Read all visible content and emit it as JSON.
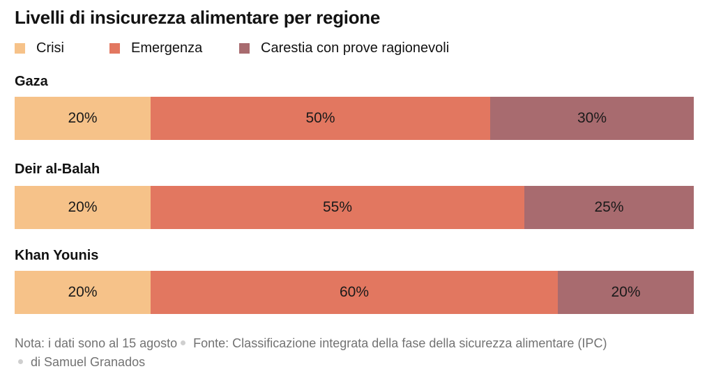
{
  "colors": {
    "crisi": "#f6c289",
    "emergenza": "#e27760",
    "carestia": "#a86b6f"
  },
  "chart_data": {
    "type": "bar",
    "title": "Livelli di insicurezza alimentare per regione",
    "orientation": "horizontal",
    "stacked": true,
    "unit": "%",
    "xlim": [
      0,
      100
    ],
    "categories": [
      "Gaza",
      "Deir al-Balah",
      "Khan Younis"
    ],
    "series": [
      {
        "name": "Crisi",
        "key": "crisi",
        "values": [
          20,
          20,
          20
        ],
        "labels": [
          "20%",
          "20%",
          "20%"
        ]
      },
      {
        "name": "Emergenza",
        "key": "emergenza",
        "values": [
          50,
          55,
          60
        ],
        "labels": [
          "50%",
          "55%",
          "60%"
        ]
      },
      {
        "name": "Carestia con prove ragionevoli",
        "key": "carestia",
        "values": [
          30,
          25,
          20
        ],
        "labels": [
          "30%",
          "25%",
          "20%"
        ]
      }
    ],
    "legend": "top-left",
    "grid": false
  },
  "footer": {
    "nota": "Nota: i dati sono al 15 agosto",
    "fonte": "Fonte: Classificazione integrata della fase della sicurezza alimentare (IPC)",
    "autore": "di Samuel Granados"
  }
}
